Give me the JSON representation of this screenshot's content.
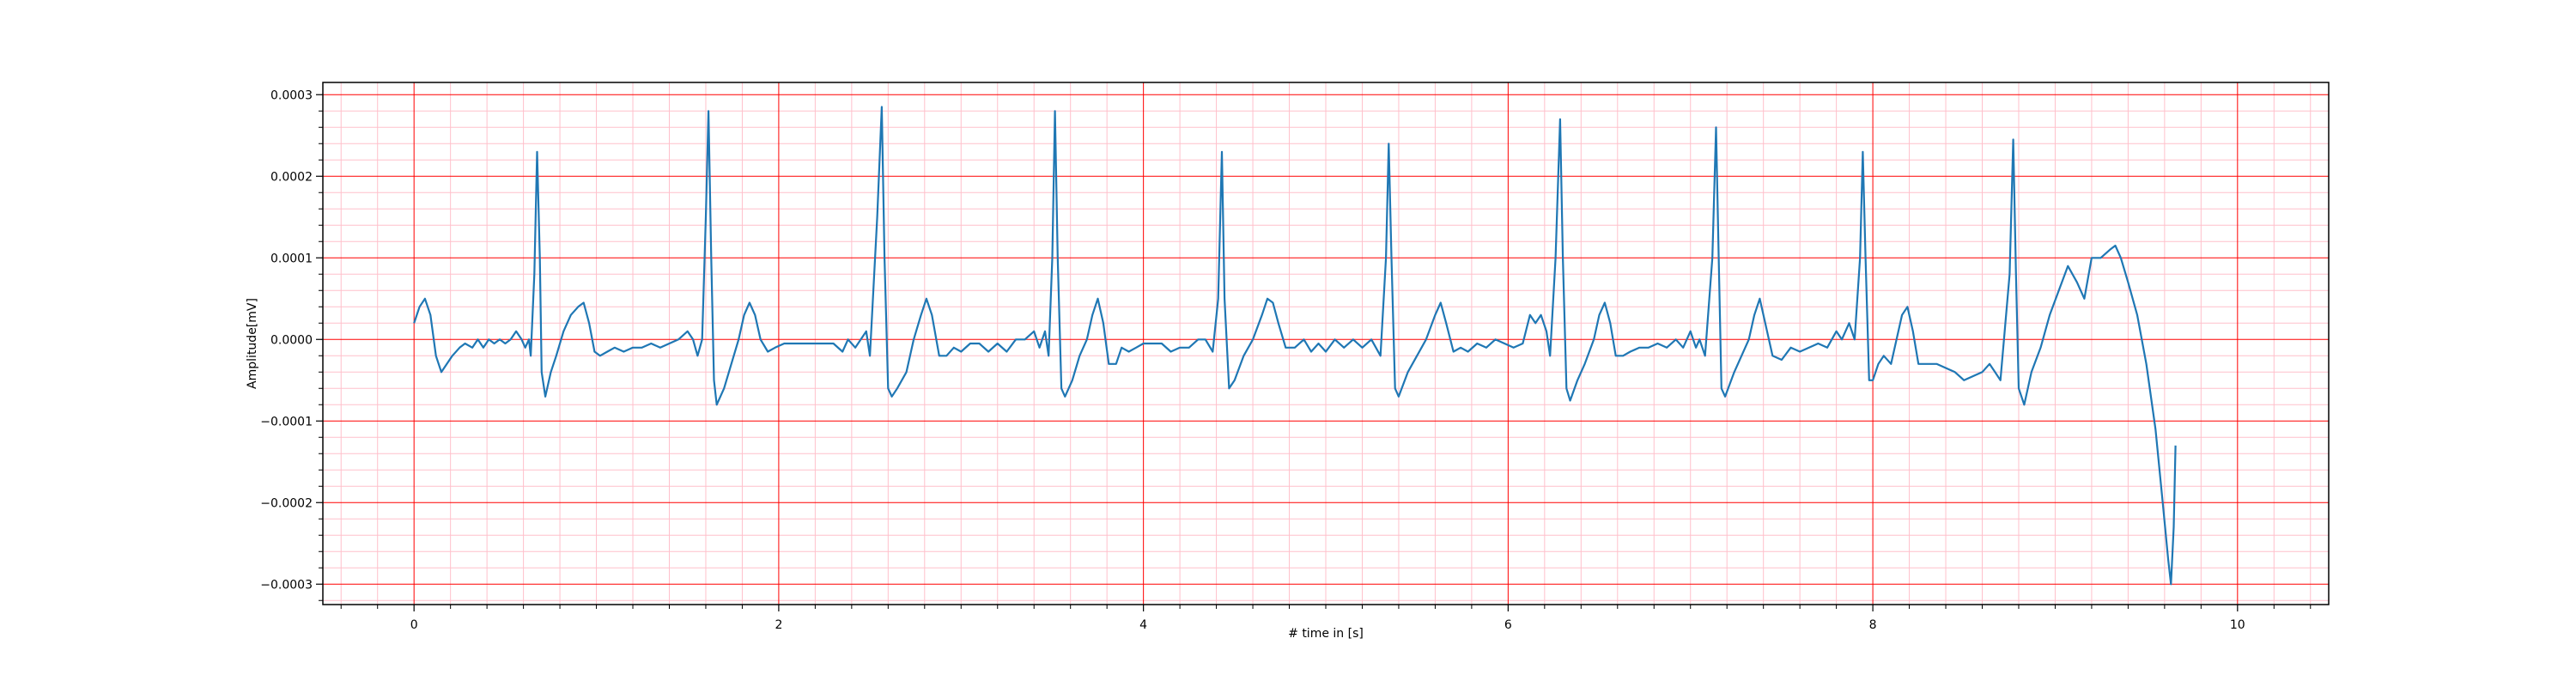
{
  "chart_data": {
    "type": "line",
    "title": "",
    "xlabel": "# time in [s]",
    "ylabel": "Amplitude[mV]",
    "xlim": [
      -0.5,
      10.5
    ],
    "ylim": [
      -0.000325,
      0.000315
    ],
    "xticks": [
      0,
      2,
      4,
      6,
      8,
      10
    ],
    "xtick_labels": [
      "0",
      "2",
      "4",
      "6",
      "8",
      "10"
    ],
    "yticks": [
      -0.0003,
      -0.0002,
      -0.0001,
      0.0,
      0.0001,
      0.0002,
      0.0003
    ],
    "ytick_labels": [
      "−0.0003",
      "−0.0002",
      "−0.0001",
      "0.0000",
      "0.0001",
      "0.0002",
      "0.0003"
    ],
    "grid": {
      "major": true,
      "minor": true,
      "major_color": "#ff0000",
      "minor_color": "#ffc0cb"
    },
    "series": [
      {
        "color": "#1f77b4",
        "points": [
          [
            0.0,
            2e-05
          ],
          [
            0.03,
            4e-05
          ],
          [
            0.06,
            5e-05
          ],
          [
            0.09,
            3e-05
          ],
          [
            0.12,
            -2e-05
          ],
          [
            0.15,
            -4e-05
          ],
          [
            0.18,
            -3e-05
          ],
          [
            0.21,
            -2e-05
          ],
          [
            0.25,
            -1e-05
          ],
          [
            0.28,
            -5e-06
          ],
          [
            0.32,
            -1e-05
          ],
          [
            0.35,
            0.0
          ],
          [
            0.38,
            -1e-05
          ],
          [
            0.41,
            0.0
          ],
          [
            0.44,
            -5e-06
          ],
          [
            0.47,
            0.0
          ],
          [
            0.5,
            -5e-06
          ],
          [
            0.53,
            0.0
          ],
          [
            0.56,
            1e-05
          ],
          [
            0.59,
            0.0
          ],
          [
            0.61,
            -1e-05
          ],
          [
            0.63,
            0.0
          ],
          [
            0.64,
            -2e-05
          ],
          [
            0.66,
            8e-05
          ],
          [
            0.675,
            0.00023
          ],
          [
            0.69,
            0.0001
          ],
          [
            0.7,
            -4e-05
          ],
          [
            0.72,
            -7e-05
          ],
          [
            0.75,
            -4e-05
          ],
          [
            0.78,
            -2e-05
          ],
          [
            0.82,
            1e-05
          ],
          [
            0.86,
            3e-05
          ],
          [
            0.9,
            4e-05
          ],
          [
            0.93,
            4.5e-05
          ],
          [
            0.96,
            2e-05
          ],
          [
            0.99,
            -1.5e-05
          ],
          [
            1.02,
            -2e-05
          ],
          [
            1.06,
            -1.5e-05
          ],
          [
            1.1,
            -1e-05
          ],
          [
            1.15,
            -1.5e-05
          ],
          [
            1.2,
            -1e-05
          ],
          [
            1.25,
            -1e-05
          ],
          [
            1.3,
            -5e-06
          ],
          [
            1.35,
            -1e-05
          ],
          [
            1.4,
            -5e-06
          ],
          [
            1.45,
            0.0
          ],
          [
            1.5,
            1e-05
          ],
          [
            1.53,
            0.0
          ],
          [
            1.555,
            -2e-05
          ],
          [
            1.58,
            0.0
          ],
          [
            1.6,
            0.00015
          ],
          [
            1.615,
            0.00028
          ],
          [
            1.63,
            0.0001
          ],
          [
            1.645,
            -5e-05
          ],
          [
            1.66,
            -8e-05
          ],
          [
            1.7,
            -6e-05
          ],
          [
            1.74,
            -3e-05
          ],
          [
            1.78,
            0.0
          ],
          [
            1.81,
            3e-05
          ],
          [
            1.84,
            4.5e-05
          ],
          [
            1.87,
            3e-05
          ],
          [
            1.9,
            0.0
          ],
          [
            1.94,
            -1.5e-05
          ],
          [
            1.98,
            -1e-05
          ],
          [
            2.03,
            -5e-06
          ],
          [
            2.1,
            -5e-06
          ],
          [
            2.2,
            -5e-06
          ],
          [
            2.3,
            -5e-06
          ],
          [
            2.35,
            -1.5e-05
          ],
          [
            2.38,
            0.0
          ],
          [
            2.42,
            -1e-05
          ],
          [
            2.45,
            0.0
          ],
          [
            2.48,
            1e-05
          ],
          [
            2.5,
            -2e-05
          ],
          [
            2.54,
            0.00015
          ],
          [
            2.565,
            0.000285
          ],
          [
            2.58,
            0.0001
          ],
          [
            2.6,
            -6e-05
          ],
          [
            2.62,
            -7e-05
          ],
          [
            2.65,
            -6e-05
          ],
          [
            2.7,
            -4e-05
          ],
          [
            2.74,
            0.0
          ],
          [
            2.78,
            3e-05
          ],
          [
            2.81,
            5e-05
          ],
          [
            2.84,
            3e-05
          ],
          [
            2.88,
            -2e-05
          ],
          [
            2.92,
            -2e-05
          ],
          [
            2.96,
            -1e-05
          ],
          [
            3.0,
            -1.5e-05
          ],
          [
            3.05,
            -5e-06
          ],
          [
            3.1,
            -5e-06
          ],
          [
            3.15,
            -1.5e-05
          ],
          [
            3.2,
            -5e-06
          ],
          [
            3.25,
            -1.5e-05
          ],
          [
            3.3,
            0.0
          ],
          [
            3.35,
            0.0
          ],
          [
            3.4,
            1e-05
          ],
          [
            3.43,
            -1e-05
          ],
          [
            3.46,
            1e-05
          ],
          [
            3.48,
            -2e-05
          ],
          [
            3.5,
            0.0001
          ],
          [
            3.515,
            0.00028
          ],
          [
            3.53,
            0.0001
          ],
          [
            3.55,
            -6e-05
          ],
          [
            3.57,
            -7e-05
          ],
          [
            3.61,
            -5e-05
          ],
          [
            3.65,
            -2e-05
          ],
          [
            3.69,
            0.0
          ],
          [
            3.72,
            3e-05
          ],
          [
            3.75,
            5e-05
          ],
          [
            3.78,
            2e-05
          ],
          [
            3.81,
            -3e-05
          ],
          [
            3.85,
            -3e-05
          ],
          [
            3.88,
            -1e-05
          ],
          [
            3.92,
            -1.5e-05
          ],
          [
            3.96,
            -1e-05
          ],
          [
            4.0,
            -5e-06
          ],
          [
            4.05,
            -5e-06
          ],
          [
            4.1,
            -5e-06
          ],
          [
            4.15,
            -1.5e-05
          ],
          [
            4.2,
            -1e-05
          ],
          [
            4.25,
            -1e-05
          ],
          [
            4.3,
            0.0
          ],
          [
            4.34,
            0.0
          ],
          [
            4.38,
            -1.5e-05
          ],
          [
            4.41,
            5e-05
          ],
          [
            4.43,
            0.00023
          ],
          [
            4.445,
            5e-05
          ],
          [
            4.47,
            -6e-05
          ],
          [
            4.5,
            -5e-05
          ],
          [
            4.55,
            -2e-05
          ],
          [
            4.6,
            0.0
          ],
          [
            4.65,
            3e-05
          ],
          [
            4.68,
            5e-05
          ],
          [
            4.71,
            4.5e-05
          ],
          [
            4.74,
            2e-05
          ],
          [
            4.78,
            -1e-05
          ],
          [
            4.83,
            -1e-05
          ],
          [
            4.88,
            0.0
          ],
          [
            4.92,
            -1.5e-05
          ],
          [
            4.96,
            -5e-06
          ],
          [
            5.0,
            -1.5e-05
          ],
          [
            5.05,
            0.0
          ],
          [
            5.1,
            -1e-05
          ],
          [
            5.15,
            0.0
          ],
          [
            5.2,
            -1e-05
          ],
          [
            5.25,
            0.0
          ],
          [
            5.3,
            -2e-05
          ],
          [
            5.33,
            0.0001
          ],
          [
            5.345,
            0.00024
          ],
          [
            5.36,
            0.0001
          ],
          [
            5.38,
            -6e-05
          ],
          [
            5.4,
            -7e-05
          ],
          [
            5.45,
            -4e-05
          ],
          [
            5.5,
            -2e-05
          ],
          [
            5.55,
            0.0
          ],
          [
            5.6,
            3e-05
          ],
          [
            5.63,
            4.5e-05
          ],
          [
            5.66,
            2e-05
          ],
          [
            5.7,
            -1.5e-05
          ],
          [
            5.74,
            -1e-05
          ],
          [
            5.78,
            -1.5e-05
          ],
          [
            5.83,
            -5e-06
          ],
          [
            5.88,
            -1e-05
          ],
          [
            5.93,
            0.0
          ],
          [
            5.98,
            -5e-06
          ],
          [
            6.03,
            -1e-05
          ],
          [
            6.08,
            -5e-06
          ],
          [
            6.12,
            3e-05
          ],
          [
            6.15,
            2e-05
          ],
          [
            6.18,
            3e-05
          ],
          [
            6.21,
            1e-05
          ],
          [
            6.23,
            -2e-05
          ],
          [
            6.26,
            0.0001
          ],
          [
            6.285,
            0.00027
          ],
          [
            6.3,
            0.0001
          ],
          [
            6.32,
            -6e-05
          ],
          [
            6.34,
            -7.5e-05
          ],
          [
            6.38,
            -5e-05
          ],
          [
            6.42,
            -3e-05
          ],
          [
            6.47,
            0.0
          ],
          [
            6.5,
            3e-05
          ],
          [
            6.53,
            4.5e-05
          ],
          [
            6.56,
            2e-05
          ],
          [
            6.59,
            -2e-05
          ],
          [
            6.63,
            -2e-05
          ],
          [
            6.67,
            -1.5e-05
          ],
          [
            6.72,
            -1e-05
          ],
          [
            6.77,
            -1e-05
          ],
          [
            6.82,
            -5e-06
          ],
          [
            6.87,
            -1e-05
          ],
          [
            6.92,
            0.0
          ],
          [
            6.96,
            -1e-05
          ],
          [
            7.0,
            1e-05
          ],
          [
            7.03,
            -1e-05
          ],
          [
            7.05,
            0.0
          ],
          [
            7.08,
            -2e-05
          ],
          [
            7.12,
            0.0001
          ],
          [
            7.14,
            0.00026
          ],
          [
            7.155,
            0.0001
          ],
          [
            7.17,
            -6e-05
          ],
          [
            7.19,
            -7e-05
          ],
          [
            7.24,
            -4e-05
          ],
          [
            7.28,
            -2e-05
          ],
          [
            7.32,
            0.0
          ],
          [
            7.35,
            3e-05
          ],
          [
            7.38,
            5e-05
          ],
          [
            7.41,
            2e-05
          ],
          [
            7.45,
            -2e-05
          ],
          [
            7.5,
            -2.5e-05
          ],
          [
            7.55,
            -1e-05
          ],
          [
            7.6,
            -1.5e-05
          ],
          [
            7.65,
            -1e-05
          ],
          [
            7.7,
            -5e-06
          ],
          [
            7.75,
            -1e-05
          ],
          [
            7.8,
            1e-05
          ],
          [
            7.83,
            0.0
          ],
          [
            7.87,
            2e-05
          ],
          [
            7.9,
            0.0
          ],
          [
            7.93,
            0.0001
          ],
          [
            7.945,
            0.00023
          ],
          [
            7.96,
            0.0001
          ],
          [
            7.98,
            -5e-05
          ],
          [
            8.0,
            -5e-05
          ],
          [
            8.03,
            -3e-05
          ],
          [
            8.06,
            -2e-05
          ],
          [
            8.1,
            -3e-05
          ],
          [
            8.13,
            0.0
          ],
          [
            8.16,
            3e-05
          ],
          [
            8.19,
            4e-05
          ],
          [
            8.22,
            1e-05
          ],
          [
            8.25,
            -3e-05
          ],
          [
            8.3,
            -3e-05
          ],
          [
            8.35,
            -3e-05
          ],
          [
            8.4,
            -3.5e-05
          ],
          [
            8.45,
            -4e-05
          ],
          [
            8.5,
            -5e-05
          ],
          [
            8.55,
            -4.5e-05
          ],
          [
            8.6,
            -4e-05
          ],
          [
            8.64,
            -3e-05
          ],
          [
            8.67,
            -4e-05
          ],
          [
            8.7,
            -5e-05
          ],
          [
            8.75,
            8e-05
          ],
          [
            8.77,
            0.000245
          ],
          [
            8.785,
            8e-05
          ],
          [
            8.8,
            -6e-05
          ],
          [
            8.83,
            -8e-05
          ],
          [
            8.87,
            -4e-05
          ],
          [
            8.92,
            -1e-05
          ],
          [
            8.97,
            3e-05
          ],
          [
            9.02,
            6e-05
          ],
          [
            9.07,
            9e-05
          ],
          [
            9.12,
            7e-05
          ],
          [
            9.16,
            5e-05
          ],
          [
            9.2,
            0.0001
          ],
          [
            9.25,
            0.0001
          ],
          [
            9.3,
            0.00011
          ],
          [
            9.33,
            0.000115
          ],
          [
            9.36,
            0.0001
          ],
          [
            9.4,
            7e-05
          ],
          [
            9.45,
            3e-05
          ],
          [
            9.5,
            -3e-05
          ],
          [
            9.55,
            -0.00011
          ],
          [
            9.59,
            -0.0002
          ],
          [
            9.62,
            -0.00027
          ],
          [
            9.635,
            -0.0003
          ],
          [
            9.65,
            -0.00023
          ],
          [
            9.66,
            -0.00013
          ]
        ]
      }
    ]
  }
}
